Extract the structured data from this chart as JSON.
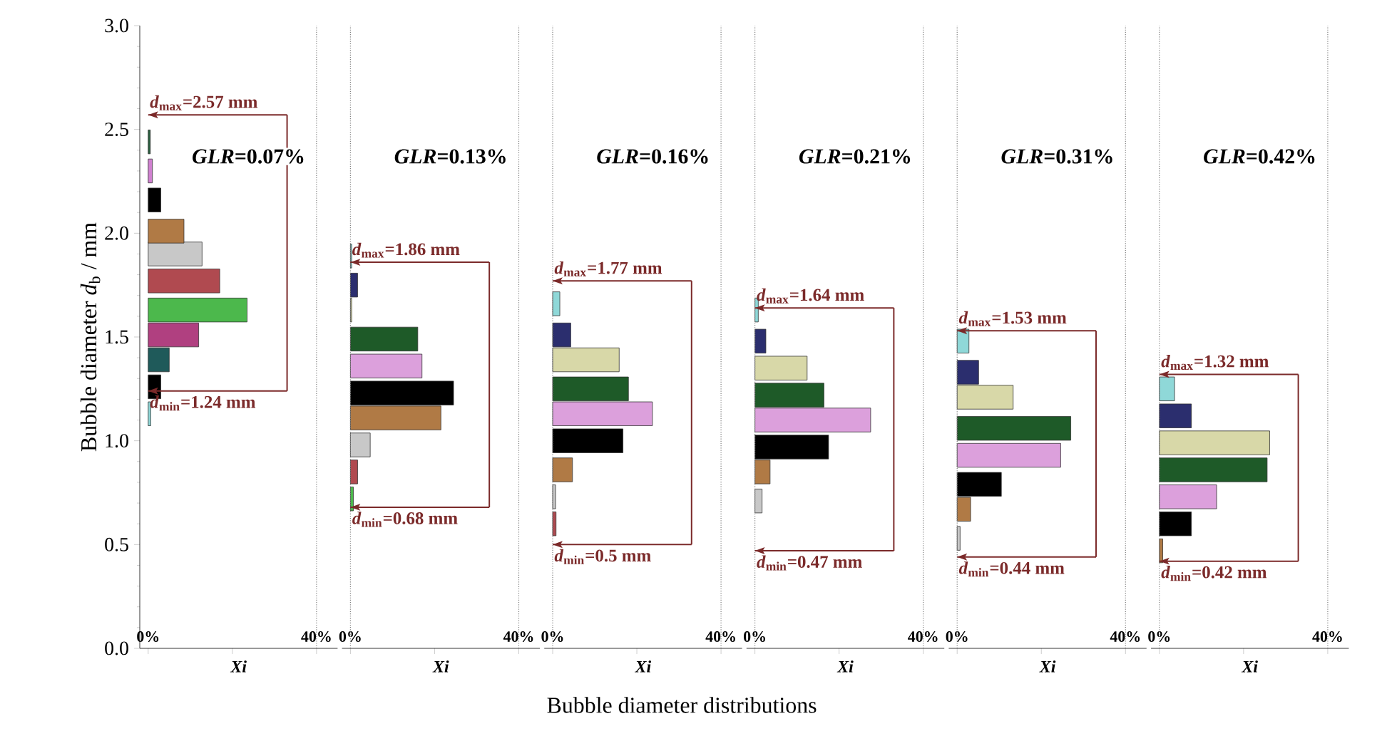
{
  "chart_data": [
    {
      "type": "bar",
      "orientation": "horizontal",
      "title": "*GLR*=0.07%",
      "xlabel": "Xi",
      "ylabel": "Bubble diameter *d*$_{b}$ / mm",
      "x": [
        1.13,
        1.26,
        1.39,
        1.51,
        1.63,
        1.77,
        1.9,
        2.01,
        2.16,
        2.3,
        2.44
      ],
      "values": [
        0.6,
        3.0,
        5.0,
        12.0,
        23.5,
        17.0,
        12.8,
        8.5,
        3.0,
        1.0,
        0.5
      ],
      "colors": [
        "#8fd8d8",
        "#000000",
        "#1f5a5a",
        "#b04080",
        "#4cb84c",
        "#b04a50",
        "#c8c8c8",
        "#b07a45",
        "#000000",
        "#d080d0",
        "#2a6040"
      ],
      "xlim": [
        -2,
        45
      ],
      "xticks": [
        {
          "value": 0,
          "label": "0%"
        },
        {
          "value": 20,
          "label": null
        },
        {
          "value": 40,
          "label": "40%"
        }
      ],
      "ylim": [
        0,
        3
      ],
      "yticks": [
        {
          "value": 0,
          "label": "0.0"
        },
        {
          "value": 0.5,
          "label": "0.5"
        },
        {
          "value": 1,
          "label": "1.0"
        },
        {
          "value": 1.5,
          "label": "1.5"
        },
        {
          "value": 2,
          "label": "2.0"
        },
        {
          "value": 2.5,
          "label": "2.5"
        },
        {
          "value": 3,
          "label": "3.0"
        }
      ],
      "ref_lines": [
        {
          "axis": "x",
          "value": 40,
          "line_style": "dotted"
        },
        {
          "axis": "y",
          "value": 2.57,
          "label": "*d*$_{max}$=2.57 mm",
          "color": "#7b2a2a"
        },
        {
          "axis": "y",
          "value": 1.24,
          "label": "*d*$_{min}$=1.24 mm",
          "color": "#7b2a2a"
        }
      ],
      "annotations": [
        "Bubble diameter distributions"
      ]
    },
    {
      "type": "bar",
      "orientation": "horizontal",
      "title": "*GLR*=0.13%",
      "xlabel": "Xi",
      "tick_labels": "x",
      "x": [
        0.72,
        0.85,
        0.98,
        1.11,
        1.23,
        1.36,
        1.49,
        1.63,
        1.75,
        1.89
      ],
      "values": [
        0.7,
        1.7,
        4.7,
        21.5,
        24.5,
        17.0,
        16.0,
        0.3,
        1.7,
        0.3
      ],
      "colors": [
        "#4cb84c",
        "#b04a50",
        "#c8c8c8",
        "#b07a45",
        "#000000",
        "#dca0dc",
        "#1e5a28",
        "#d8d8a8",
        "#2b2e6e",
        "#8fd8d8"
      ],
      "xlim": [
        -2,
        45
      ],
      "xticks": [
        {
          "value": 0,
          "label": "0%"
        },
        {
          "value": 20,
          "label": null
        },
        {
          "value": 40,
          "label": "40%"
        }
      ],
      "ylim": [
        0,
        3
      ],
      "ref_lines": [
        {
          "axis": "x",
          "value": 0,
          "line_style": "dotted"
        },
        {
          "axis": "x",
          "value": 40,
          "line_style": "dotted"
        },
        {
          "axis": "y",
          "value": 1.86,
          "label": "*d*$_{max}$=1.86 mm",
          "color": "#7b2a2a"
        },
        {
          "axis": "y",
          "value": 0.68,
          "label": "*d*$_{min}$=0.68 mm",
          "color": "#7b2a2a"
        }
      ]
    },
    {
      "type": "bar",
      "orientation": "horizontal",
      "title": "*GLR*=0.16%",
      "xlabel": "Xi",
      "tick_labels": "x",
      "x": [
        0.6,
        0.73,
        0.86,
        1.0,
        1.13,
        1.25,
        1.39,
        1.51,
        1.66
      ],
      "values": [
        0.8,
        0.7,
        4.7,
        16.7,
        23.7,
        18.0,
        15.8,
        4.3,
        1.7
      ],
      "colors": [
        "#b04a50",
        "#c8c8c8",
        "#b07a45",
        "#000000",
        "#dca0dc",
        "#1e5a28",
        "#d8d8a8",
        "#2b2e6e",
        "#8fd8d8"
      ],
      "xlim": [
        -2,
        45
      ],
      "xticks": [
        {
          "value": 0,
          "label": "0%"
        },
        {
          "value": 20,
          "label": null
        },
        {
          "value": 40,
          "label": "40%"
        }
      ],
      "ylim": [
        0,
        3
      ],
      "ref_lines": [
        {
          "axis": "x",
          "value": 0,
          "line_style": "dotted"
        },
        {
          "axis": "x",
          "value": 40,
          "line_style": "dotted"
        },
        {
          "axis": "y",
          "value": 1.77,
          "label": "*d*$_{max}$=1.77 mm",
          "color": "#7b2a2a"
        },
        {
          "axis": "y",
          "value": 0.5,
          "label": "*d*$_{min}$=0.5 mm",
          "color": "#7b2a2a"
        }
      ]
    },
    {
      "type": "bar",
      "orientation": "horizontal",
      "title": "*GLR*=0.21%",
      "xlabel": "Xi",
      "tick_labels": "x",
      "x": [
        0.71,
        0.85,
        0.97,
        1.1,
        1.22,
        1.35,
        1.48,
        1.63
      ],
      "values": [
        1.7,
        3.6,
        17.5,
        27.5,
        16.4,
        12.4,
        2.6,
        0.8
      ],
      "colors": [
        "#c8c8c8",
        "#b07a45",
        "#000000",
        "#dca0dc",
        "#1e5a28",
        "#d8d8a8",
        "#2b2e6e",
        "#8fd8d8"
      ],
      "xlim": [
        -2,
        45
      ],
      "xticks": [
        {
          "value": 0,
          "label": "0%"
        },
        {
          "value": 20,
          "label": null
        },
        {
          "value": 40,
          "label": "40%"
        }
      ],
      "ylim": [
        0,
        3
      ],
      "ref_lines": [
        {
          "axis": "x",
          "value": 0,
          "line_style": "dotted"
        },
        {
          "axis": "x",
          "value": 40,
          "line_style": "dotted"
        },
        {
          "axis": "y",
          "value": 1.64,
          "label": "*d*$_{max}$=1.64 mm",
          "color": "#7b2a2a"
        },
        {
          "axis": "y",
          "value": 0.47,
          "label": "*d*$_{min}$=0.47 mm",
          "color": "#7b2a2a"
        }
      ]
    },
    {
      "type": "bar",
      "orientation": "horizontal",
      "title": "*GLR*=0.31%",
      "xlabel": "Xi",
      "tick_labels": "x",
      "x": [
        0.53,
        0.67,
        0.79,
        0.93,
        1.06,
        1.21,
        1.33,
        1.48
      ],
      "values": [
        0.7,
        3.2,
        10.5,
        24.6,
        27.0,
        13.3,
        5.1,
        2.8
      ],
      "colors": [
        "#c8c8c8",
        "#b07a45",
        "#000000",
        "#dca0dc",
        "#1e5a28",
        "#d8d8a8",
        "#2b2e6e",
        "#8fd8d8"
      ],
      "xlim": [
        -2,
        45
      ],
      "xticks": [
        {
          "value": 0,
          "label": "0%"
        },
        {
          "value": 20,
          "label": null
        },
        {
          "value": 40,
          "label": "40%"
        }
      ],
      "ylim": [
        0,
        3
      ],
      "ref_lines": [
        {
          "axis": "x",
          "value": 0,
          "line_style": "dotted"
        },
        {
          "axis": "x",
          "value": 40,
          "line_style": "dotted"
        },
        {
          "axis": "y",
          "value": 1.53,
          "label": "*d*$_{max}$=1.53 mm",
          "color": "#7b2a2a"
        },
        {
          "axis": "y",
          "value": 0.44,
          "label": "*d*$_{min}$=0.44 mm",
          "color": "#7b2a2a"
        }
      ]
    },
    {
      "type": "bar",
      "orientation": "horizontal",
      "title": "*GLR*=0.42%",
      "xlabel": "Xi",
      "tick_labels": "x",
      "x": [
        0.47,
        0.6,
        0.73,
        0.86,
        0.99,
        1.12,
        1.25
      ],
      "values": [
        0.8,
        7.6,
        13.6,
        25.6,
        26.2,
        7.6,
        3.6
      ],
      "colors": [
        "#b07a45",
        "#000000",
        "#dca0dc",
        "#1e5a28",
        "#d8d8a8",
        "#2b2e6e",
        "#8fd8d8"
      ],
      "xlim": [
        -2,
        45
      ],
      "xticks": [
        {
          "value": 0,
          "label": "0%"
        },
        {
          "value": 20,
          "label": null
        },
        {
          "value": 40,
          "label": "40%"
        }
      ],
      "ylim": [
        0,
        3
      ],
      "ref_lines": [
        {
          "axis": "x",
          "value": 0,
          "line_style": "dotted"
        },
        {
          "axis": "x",
          "value": 40,
          "line_style": "dotted"
        },
        {
          "axis": "y",
          "value": 1.32,
          "label": "*d*$_{max}$=1.32 mm",
          "color": "#7b2a2a"
        },
        {
          "axis": "y",
          "value": 0.42,
          "label": "*d*$_{min}$=0.42 mm",
          "color": "#7b2a2a"
        }
      ]
    }
  ]
}
